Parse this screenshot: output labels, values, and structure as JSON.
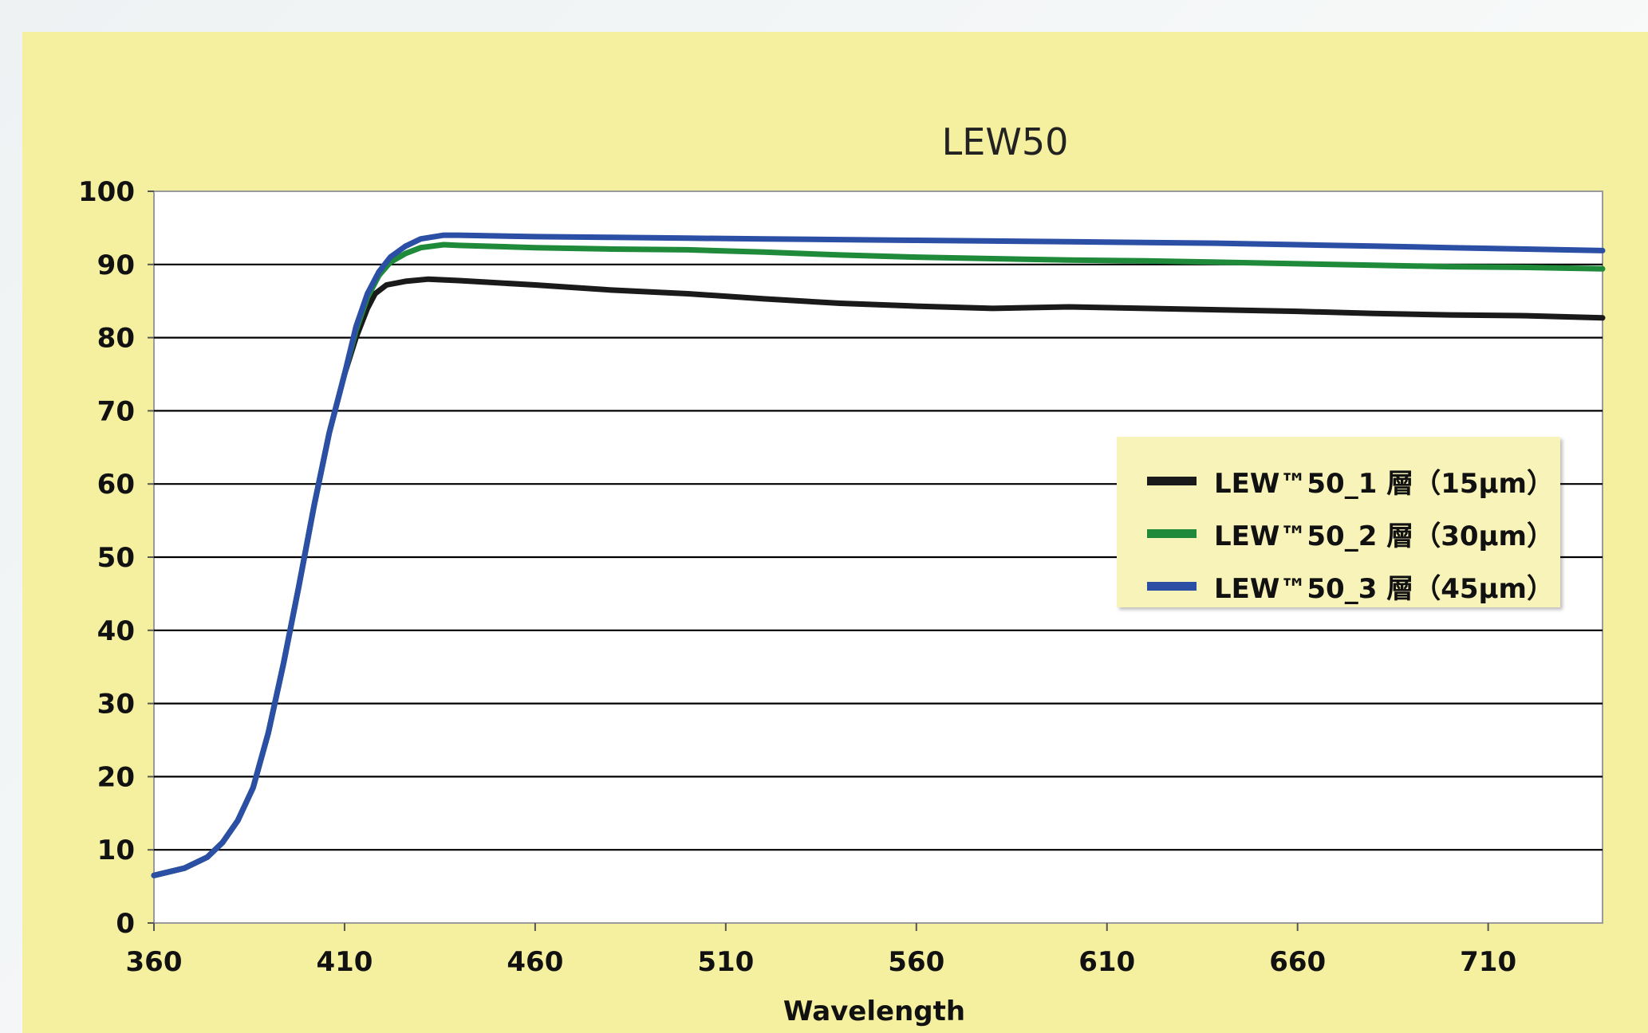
{
  "chart_data": {
    "type": "line",
    "title": "LEW50",
    "xlabel": "Wavelength",
    "ylabel": "",
    "xlim": [
      360,
      740
    ],
    "ylim": [
      0,
      100
    ],
    "x_ticks": [
      360,
      410,
      460,
      510,
      560,
      610,
      660,
      710
    ],
    "y_ticks": [
      0,
      10,
      20,
      30,
      40,
      50,
      60,
      70,
      80,
      90,
      100
    ],
    "grid": true,
    "legend_position": "center-right",
    "series": [
      {
        "name": "LEW™50_1 層（15μm）",
        "color": "#1a1a1a",
        "points": [
          [
            360,
            6.5
          ],
          [
            368,
            7.5
          ],
          [
            374,
            9
          ],
          [
            378,
            11
          ],
          [
            382,
            14
          ],
          [
            386,
            18.5
          ],
          [
            390,
            26
          ],
          [
            394,
            35.5
          ],
          [
            398,
            46
          ],
          [
            402,
            57
          ],
          [
            406,
            67
          ],
          [
            410,
            75
          ],
          [
            413,
            80
          ],
          [
            416,
            84
          ],
          [
            418,
            86
          ],
          [
            421,
            87.2
          ],
          [
            426,
            87.7
          ],
          [
            432,
            88
          ],
          [
            440,
            87.8
          ],
          [
            460,
            87.2
          ],
          [
            480,
            86.5
          ],
          [
            500,
            86
          ],
          [
            520,
            85.3
          ],
          [
            540,
            84.7
          ],
          [
            560,
            84.3
          ],
          [
            580,
            84
          ],
          [
            600,
            84.2
          ],
          [
            620,
            84
          ],
          [
            640,
            83.8
          ],
          [
            660,
            83.6
          ],
          [
            680,
            83.3
          ],
          [
            700,
            83.1
          ],
          [
            720,
            83
          ],
          [
            740,
            82.7
          ]
        ]
      },
      {
        "name": "LEW™50_2 層（30μm）",
        "color": "#1e8a3a",
        "points": [
          [
            360,
            6.5
          ],
          [
            368,
            7.5
          ],
          [
            374,
            9
          ],
          [
            378,
            11
          ],
          [
            382,
            14
          ],
          [
            386,
            18.5
          ],
          [
            390,
            26
          ],
          [
            394,
            35.5
          ],
          [
            398,
            46
          ],
          [
            402,
            57
          ],
          [
            406,
            67
          ],
          [
            410,
            75
          ],
          [
            413,
            81
          ],
          [
            416,
            85.5
          ],
          [
            419,
            88.5
          ],
          [
            422,
            90.3
          ],
          [
            426,
            91.5
          ],
          [
            430,
            92.3
          ],
          [
            436,
            92.7
          ],
          [
            440,
            92.6
          ],
          [
            460,
            92.3
          ],
          [
            480,
            92.1
          ],
          [
            500,
            92
          ],
          [
            520,
            91.7
          ],
          [
            540,
            91.3
          ],
          [
            560,
            91
          ],
          [
            580,
            90.8
          ],
          [
            600,
            90.6
          ],
          [
            620,
            90.5
          ],
          [
            640,
            90.3
          ],
          [
            660,
            90.1
          ],
          [
            680,
            89.9
          ],
          [
            700,
            89.7
          ],
          [
            720,
            89.6
          ],
          [
            740,
            89.4
          ]
        ]
      },
      {
        "name": "LEW™50_3 層（45μm）",
        "color": "#2c4fa6",
        "points": [
          [
            360,
            6.5
          ],
          [
            368,
            7.5
          ],
          [
            374,
            9
          ],
          [
            378,
            11
          ],
          [
            382,
            14
          ],
          [
            386,
            18.5
          ],
          [
            390,
            26
          ],
          [
            394,
            35.5
          ],
          [
            398,
            46
          ],
          [
            402,
            57
          ],
          [
            406,
            67
          ],
          [
            410,
            75
          ],
          [
            413,
            81.5
          ],
          [
            416,
            86
          ],
          [
            419,
            89
          ],
          [
            422,
            91
          ],
          [
            426,
            92.5
          ],
          [
            430,
            93.5
          ],
          [
            436,
            94
          ],
          [
            440,
            94
          ],
          [
            460,
            93.8
          ],
          [
            480,
            93.7
          ],
          [
            500,
            93.6
          ],
          [
            520,
            93.5
          ],
          [
            540,
            93.4
          ],
          [
            560,
            93.3
          ],
          [
            580,
            93.2
          ],
          [
            600,
            93.1
          ],
          [
            620,
            93
          ],
          [
            640,
            92.9
          ],
          [
            660,
            92.7
          ],
          [
            680,
            92.5
          ],
          [
            700,
            92.3
          ],
          [
            720,
            92.1
          ],
          [
            740,
            91.9
          ]
        ]
      }
    ]
  }
}
